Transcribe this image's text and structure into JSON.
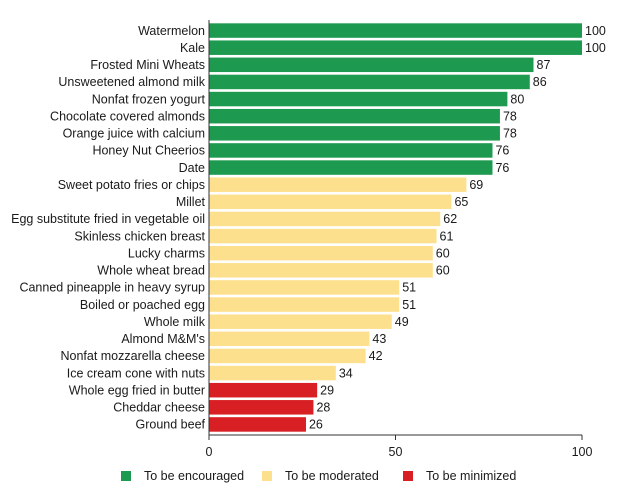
{
  "chart_data": {
    "type": "bar",
    "orientation": "horizontal",
    "title": "",
    "xlabel": "",
    "ylabel": "",
    "xlim": [
      0,
      100
    ],
    "xticks": [
      0,
      50,
      100
    ],
    "grid": false,
    "legend_position": "bottom",
    "categories": [
      "Watermelon",
      "Kale",
      "Frosted Mini Wheats",
      "Unsweetened almond milk",
      "Nonfat frozen yogurt",
      "Chocolate covered almonds",
      "Orange juice with calcium",
      "Honey Nut Cheerios",
      "Date",
      "Sweet potato fries or chips",
      "Millet",
      "Egg substitute fried in vegetable oil",
      "Skinless chicken breast",
      "Lucky charms",
      "Whole wheat bread",
      "Canned pineapple in heavy syrup",
      "Boiled or poached egg",
      "Whole milk",
      "Almond M&M's",
      "Nonfat mozzarella cheese",
      "Ice cream cone with nuts",
      "Whole egg fried in butter",
      "Cheddar cheese",
      "Ground beef"
    ],
    "values": [
      100,
      100,
      87,
      86,
      80,
      78,
      78,
      76,
      76,
      69,
      65,
      62,
      61,
      60,
      60,
      51,
      51,
      49,
      43,
      42,
      34,
      29,
      28,
      26
    ],
    "groups": [
      "encouraged",
      "encouraged",
      "encouraged",
      "encouraged",
      "encouraged",
      "encouraged",
      "encouraged",
      "encouraged",
      "encouraged",
      "moderated",
      "moderated",
      "moderated",
      "moderated",
      "moderated",
      "moderated",
      "moderated",
      "moderated",
      "moderated",
      "moderated",
      "moderated",
      "moderated",
      "minimized",
      "minimized",
      "minimized"
    ],
    "legend": [
      {
        "key": "encouraged",
        "label": "To be encouraged",
        "color": "#1e9a50"
      },
      {
        "key": "moderated",
        "label": "To be moderated",
        "color": "#fde08e"
      },
      {
        "key": "minimized",
        "label": "To be minimized",
        "color": "#d71f24"
      }
    ]
  }
}
